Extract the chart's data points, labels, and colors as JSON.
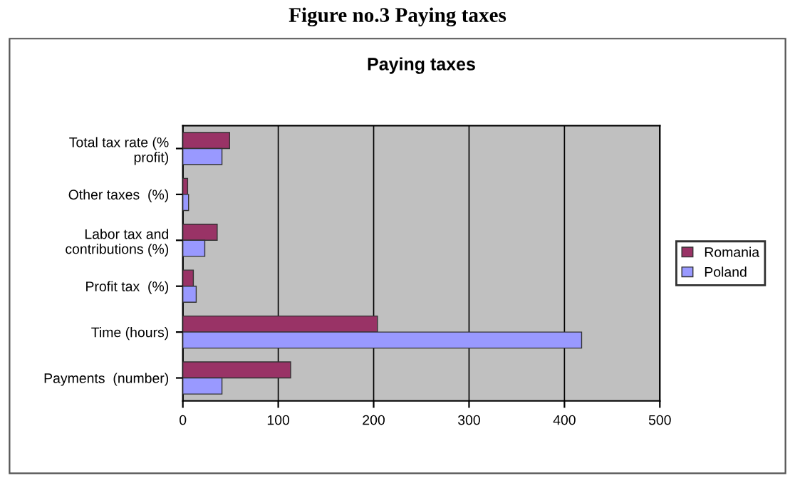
{
  "chart_data": {
    "type": "bar",
    "orientation": "horizontal",
    "title": "Paying taxes",
    "subtitle": "Figure no.3 Paying taxes",
    "categories": [
      "Total tax rate (%\nprofit)",
      "Other taxes  (%)",
      "Labor tax and\ncontributions (%)",
      "Profit tax  (%)",
      "Time (hours)",
      "Payments  (number)"
    ],
    "series": [
      {
        "name": "Romania",
        "color": "#993366",
        "values": [
          49,
          5,
          36,
          11,
          204,
          113
        ]
      },
      {
        "name": "Poland",
        "color": "#9999ff",
        "values": [
          41,
          6,
          23,
          14,
          418,
          41
        ]
      }
    ],
    "xlim": [
      0,
      500
    ],
    "xticks": [
      0,
      100,
      200,
      300,
      400,
      500
    ],
    "grid": "x",
    "legend": "right"
  }
}
